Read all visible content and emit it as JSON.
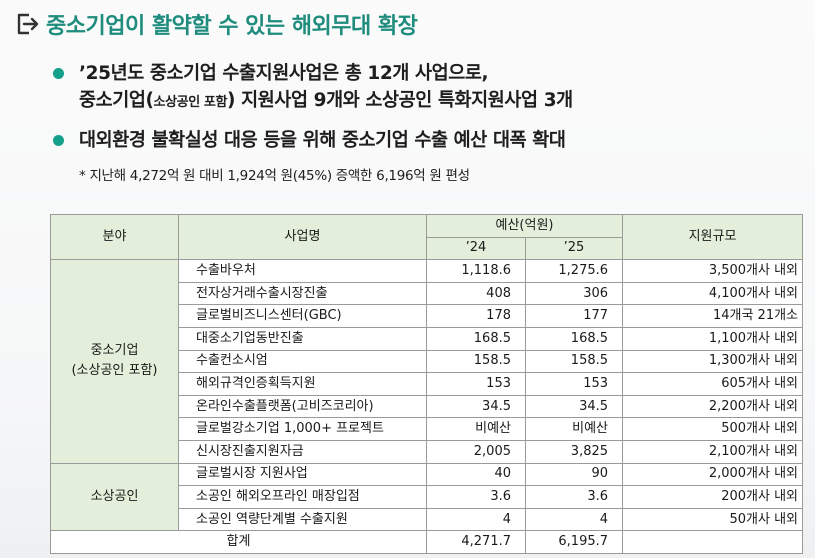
{
  "title": "중소기업이 활약할 수 있는 해외무대 확장",
  "bullets": [
    {
      "line1": "’25년도 중소기업 수출지원사업은 총 12개 사업으로,",
      "line2_a": "중소기업(",
      "line2_small": "소상공인 포함",
      "line2_b": ") 지원사업 9개와 소상공인 특화지원사업 3개"
    },
    {
      "line1": "대외환경 불확실성 대응 등을 위해 중소기업 수출 예산 대폭 확대"
    }
  ],
  "note": "* 지난해 4,272억 원 대비 1,924억 원(45%) 증액한 6,196억 원 편성",
  "table": {
    "headers": {
      "field": "분야",
      "project": "사업명",
      "budget": "예산(억원)",
      "y24": "’24",
      "y25": "’25",
      "scale": "지원규모"
    },
    "categories": [
      "중소기업\n(소상공인 포함)",
      "소상공인"
    ],
    "rows": [
      {
        "name": "수출바우처",
        "y24": "1,118.6",
        "y25": "1,275.6",
        "scale": "3,500개사 내외"
      },
      {
        "name": "전자상거래수출시장진출",
        "y24": "408",
        "y25": "306",
        "scale": "4,100개사 내외"
      },
      {
        "name": "글로벌비즈니스센터(GBC)",
        "y24": "178",
        "y25": "177",
        "scale": "14개국 21개소"
      },
      {
        "name": "대중소기업동반진출",
        "y24": "168.5",
        "y25": "168.5",
        "scale": "1,100개사 내외"
      },
      {
        "name": "수출컨소시엄",
        "y24": "158.5",
        "y25": "158.5",
        "scale": "1,300개사 내외"
      },
      {
        "name": "해외규격인증획득지원",
        "y24": "153",
        "y25": "153",
        "scale": "605개사 내외"
      },
      {
        "name": "온라인수출플랫폼(고비즈코리아)",
        "y24": "34.5",
        "y25": "34.5",
        "scale": "2,200개사 내외"
      },
      {
        "name": "글로벌강소기업 1,000+ 프로젝트",
        "y24": "비예산",
        "y25": "비예산",
        "scale": "500개사 내외"
      },
      {
        "name": "신시장진출지원자금",
        "y24": "2,005",
        "y25": "3,825",
        "scale": "2,100개사 내외"
      },
      {
        "name": "글로벌시장 지원사업",
        "y24": "40",
        "y25": "90",
        "scale": "2,000개사 내외"
      },
      {
        "name": "소공인 해외오프라인 매장입점",
        "y24": "3.6",
        "y25": "3.6",
        "scale": "200개사 내외"
      },
      {
        "name": "소공인 역량단계별 수출지원",
        "y24": "4",
        "y25": "4",
        "scale": "50개사 내외"
      }
    ],
    "total": {
      "label": "합계",
      "y24": "4,271.7",
      "y25": "6,195.7",
      "scale": ""
    }
  }
}
